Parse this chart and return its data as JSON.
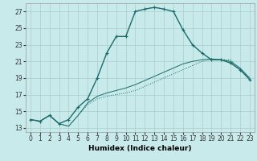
{
  "xlabel": "Humidex (Indice chaleur)",
  "bg_color": "#c9eaea",
  "grid_color": "#a8cccc",
  "line_color": "#1a6b6b",
  "xlim": [
    -0.5,
    23.5
  ],
  "ylim": [
    12.5,
    28.0
  ],
  "xticks": [
    0,
    1,
    2,
    3,
    4,
    5,
    6,
    7,
    8,
    9,
    10,
    11,
    12,
    13,
    14,
    15,
    16,
    17,
    18,
    19,
    20,
    21,
    22,
    23
  ],
  "yticks": [
    13,
    15,
    17,
    19,
    21,
    23,
    25,
    27
  ],
  "curve1_x": [
    0,
    1,
    2,
    3,
    4,
    5,
    6,
    7,
    8,
    9,
    10,
    11,
    12,
    13,
    14,
    15,
    16,
    17,
    18,
    19,
    20,
    21,
    22,
    23
  ],
  "curve1_y": [
    14.0,
    13.8,
    14.5,
    13.5,
    14.0,
    15.5,
    16.5,
    19.0,
    22.0,
    24.0,
    24.0,
    27.0,
    27.3,
    27.5,
    27.3,
    27.0,
    24.8,
    23.0,
    22.0,
    21.2,
    21.2,
    20.8,
    20.0,
    18.8
  ],
  "curve2_x": [
    0,
    1,
    2,
    3,
    4,
    5,
    6,
    7,
    8,
    9,
    10,
    11,
    12,
    13,
    14,
    15,
    16,
    17,
    18,
    19,
    20,
    21,
    22,
    23
  ],
  "curve2_y": [
    14.0,
    13.8,
    14.5,
    13.5,
    13.2,
    14.5,
    15.8,
    16.5,
    16.8,
    17.0,
    17.2,
    17.5,
    18.0,
    18.5,
    19.0,
    19.5,
    20.0,
    20.5,
    21.0,
    21.2,
    21.2,
    21.2,
    20.0,
    19.0
  ],
  "curve3_x": [
    0,
    1,
    2,
    3,
    4,
    5,
    6,
    7,
    8,
    9,
    10,
    11,
    12,
    13,
    14,
    15,
    16,
    17,
    18,
    19,
    20,
    21,
    22,
    23
  ],
  "curve3_y": [
    14.0,
    13.8,
    14.5,
    13.5,
    13.2,
    14.5,
    16.0,
    16.8,
    17.2,
    17.5,
    17.8,
    18.2,
    18.7,
    19.2,
    19.7,
    20.2,
    20.7,
    21.0,
    21.2,
    21.3,
    21.2,
    21.0,
    20.2,
    19.0
  ],
  "xlabel_fontsize": 6.5,
  "tick_fontsize": 5.5
}
